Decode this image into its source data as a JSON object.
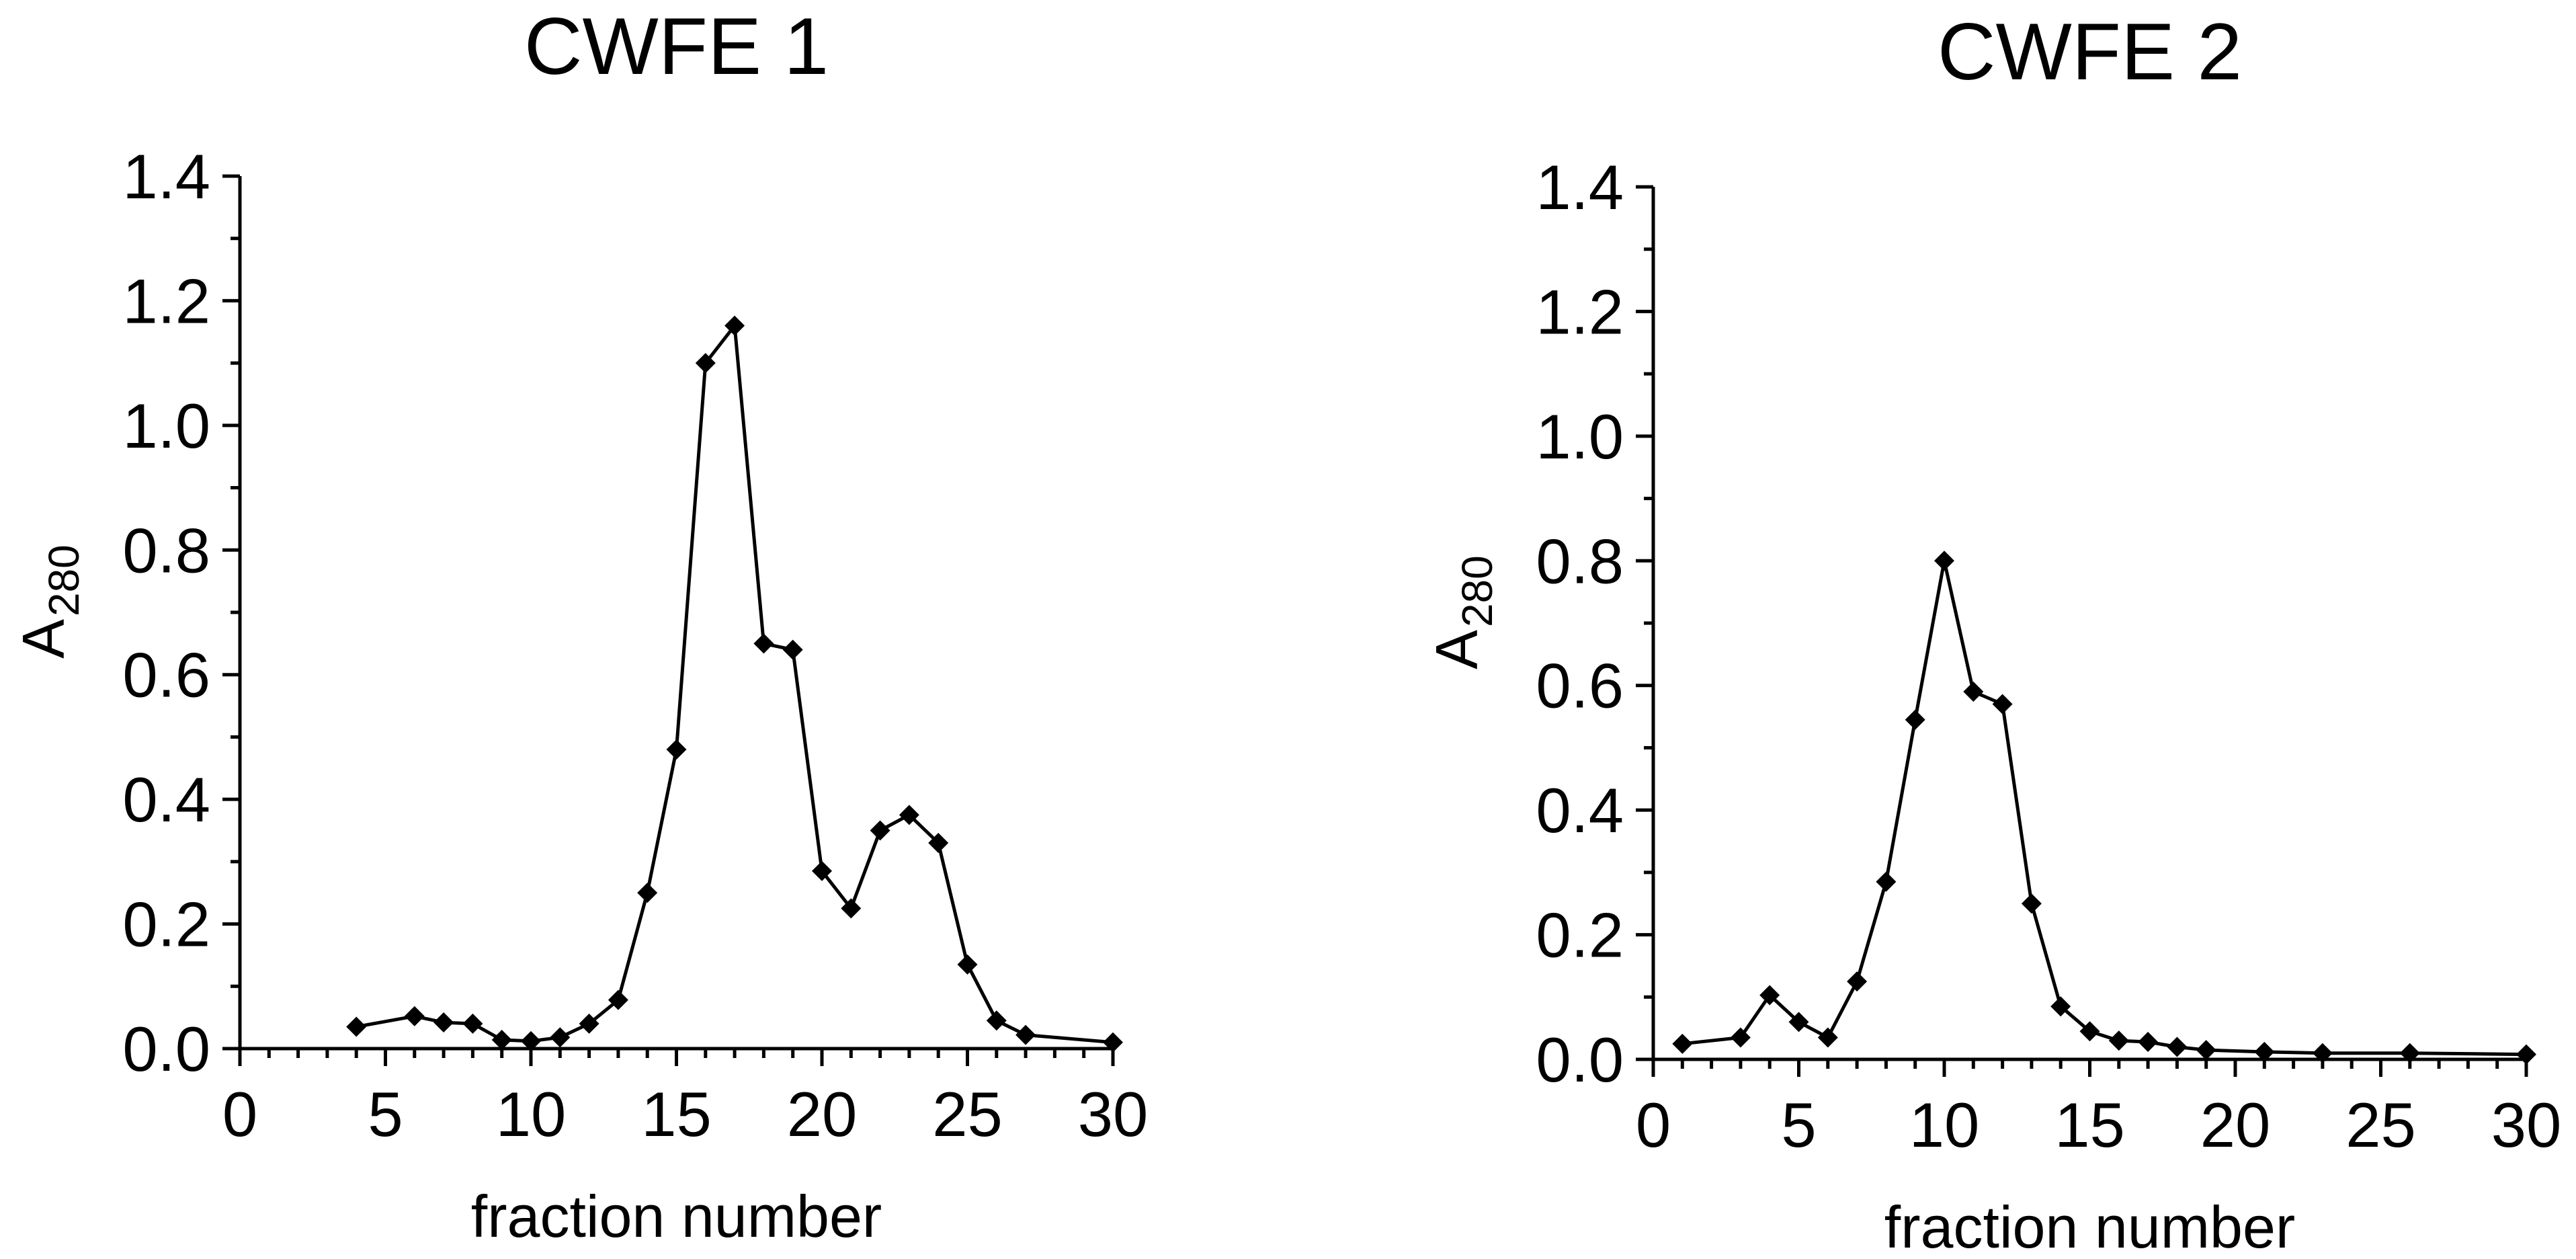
{
  "chart_data": [
    {
      "type": "line",
      "title": "CWFE 1",
      "xlabel": "fraction number",
      "ylabel_main": "A",
      "ylabel_sub": "280",
      "xlim": [
        0,
        30
      ],
      "ylim": [
        0,
        1.4
      ],
      "x_ticks": [
        "0",
        "5",
        "10",
        "15",
        "20",
        "25",
        "30"
      ],
      "y_ticks": [
        "0.0",
        "0.2",
        "0.4",
        "0.6",
        "0.8",
        "1.0",
        "1.2",
        "1.4"
      ],
      "marker": "diamond",
      "grid": false,
      "series": [
        {
          "x": [
            4,
            6,
            7,
            8,
            9,
            10,
            11,
            12,
            13,
            14,
            15,
            16,
            17,
            18,
            19,
            20,
            21,
            22,
            23,
            24,
            25,
            26,
            27,
            30
          ],
          "y": [
            0.035,
            0.052,
            0.042,
            0.04,
            0.014,
            0.012,
            0.018,
            0.04,
            0.078,
            0.25,
            0.48,
            1.1,
            1.16,
            0.65,
            0.64,
            0.285,
            0.225,
            0.35,
            0.375,
            0.33,
            0.135,
            0.045,
            0.022,
            0.01
          ]
        }
      ]
    },
    {
      "type": "line",
      "title": "CWFE 2",
      "xlabel": "fraction number",
      "ylabel_main": "A",
      "ylabel_sub": "280",
      "xlim": [
        0,
        30
      ],
      "ylim": [
        0,
        1.4
      ],
      "x_ticks": [
        "0",
        "5",
        "10",
        "15",
        "20",
        "25",
        "30"
      ],
      "y_ticks": [
        "0.0",
        "0.2",
        "0.4",
        "0.6",
        "0.8",
        "1.0",
        "1.2",
        "1.4"
      ],
      "marker": "diamond",
      "grid": false,
      "series": [
        {
          "x": [
            1,
            3,
            4,
            5,
            6,
            7,
            8,
            9,
            10,
            11,
            12,
            13,
            14,
            15,
            16,
            17,
            18,
            19,
            21,
            23,
            26,
            30
          ],
          "y": [
            0.025,
            0.035,
            0.103,
            0.06,
            0.035,
            0.125,
            0.285,
            0.545,
            0.8,
            0.59,
            0.57,
            0.25,
            0.085,
            0.045,
            0.03,
            0.028,
            0.02,
            0.015,
            0.012,
            0.01,
            0.01,
            0.008
          ]
        }
      ]
    }
  ]
}
